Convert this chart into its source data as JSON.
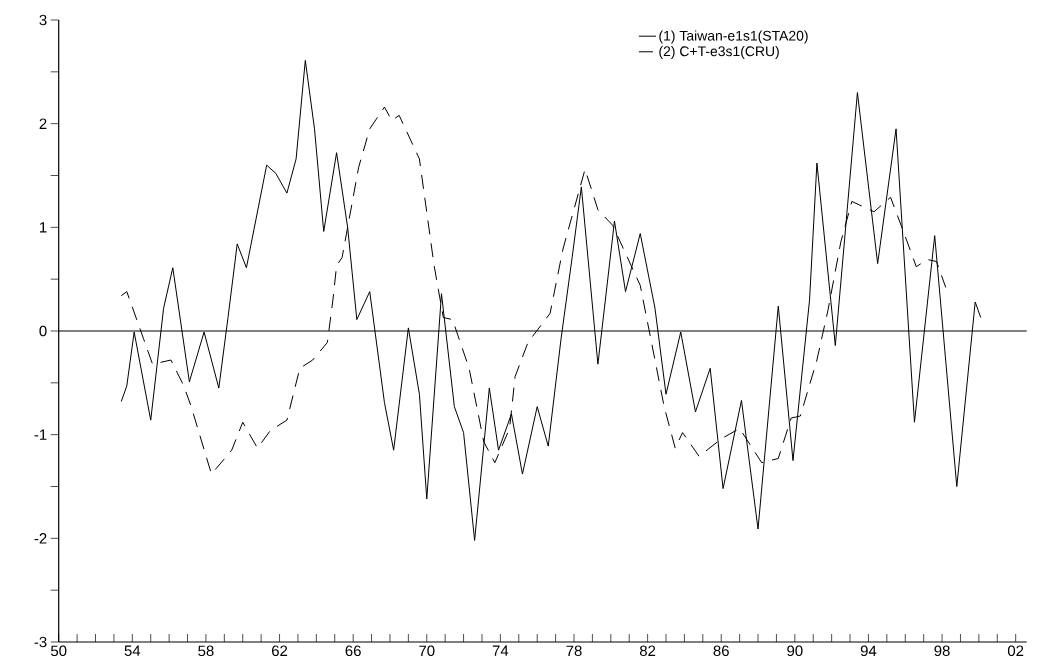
{
  "chart_data": {
    "type": "line",
    "legend": "top right",
    "xlim": [
      1950,
      2002.6
    ],
    "ylim": [
      -3,
      3
    ],
    "xticks": [
      {
        "value": 1950,
        "label": "50"
      },
      {
        "value": 1951,
        "label": null
      },
      {
        "value": 1952,
        "label": null
      },
      {
        "value": 1953,
        "label": null
      },
      {
        "value": 1954,
        "label": "54"
      },
      {
        "value": 1955,
        "label": null
      },
      {
        "value": 1956,
        "label": null
      },
      {
        "value": 1957,
        "label": null
      },
      {
        "value": 1958,
        "label": "58"
      },
      {
        "value": 1959,
        "label": null
      },
      {
        "value": 1960,
        "label": null
      },
      {
        "value": 1961,
        "label": null
      },
      {
        "value": 1962,
        "label": "62"
      },
      {
        "value": 1963,
        "label": null
      },
      {
        "value": 1964,
        "label": null
      },
      {
        "value": 1965,
        "label": null
      },
      {
        "value": 1966,
        "label": "66"
      },
      {
        "value": 1967,
        "label": null
      },
      {
        "value": 1968,
        "label": null
      },
      {
        "value": 1969,
        "label": null
      },
      {
        "value": 1970,
        "label": "70"
      },
      {
        "value": 1971,
        "label": null
      },
      {
        "value": 1972,
        "label": null
      },
      {
        "value": 1973,
        "label": null
      },
      {
        "value": 1974,
        "label": "74"
      },
      {
        "value": 1975,
        "label": null
      },
      {
        "value": 1976,
        "label": null
      },
      {
        "value": 1977,
        "label": null
      },
      {
        "value": 1978,
        "label": "78"
      },
      {
        "value": 1979,
        "label": null
      },
      {
        "value": 1980,
        "label": null
      },
      {
        "value": 1981,
        "label": null
      },
      {
        "value": 1982,
        "label": "82"
      },
      {
        "value": 1983,
        "label": null
      },
      {
        "value": 1984,
        "label": null
      },
      {
        "value": 1985,
        "label": null
      },
      {
        "value": 1986,
        "label": "86"
      },
      {
        "value": 1987,
        "label": null
      },
      {
        "value": 1988,
        "label": null
      },
      {
        "value": 1989,
        "label": null
      },
      {
        "value": 1990,
        "label": "90"
      },
      {
        "value": 1991,
        "label": null
      },
      {
        "value": 1992,
        "label": null
      },
      {
        "value": 1993,
        "label": null
      },
      {
        "value": 1994,
        "label": "94"
      },
      {
        "value": 1995,
        "label": null
      },
      {
        "value": 1996,
        "label": null
      },
      {
        "value": 1997,
        "label": null
      },
      {
        "value": 1998,
        "label": "98"
      },
      {
        "value": 1999,
        "label": null
      },
      {
        "value": 2000,
        "label": null
      },
      {
        "value": 2001,
        "label": null
      },
      {
        "value": 2002,
        "label": "02"
      }
    ],
    "yticks": [
      -3,
      {
        "value": -2.5,
        "label": null
      },
      -2,
      {
        "value": -1.5,
        "label": null
      },
      -1,
      {
        "value": -0.5,
        "label": null
      },
      0,
      {
        "value": 0.5,
        "label": null
      },
      1,
      {
        "value": 1.5,
        "label": null
      },
      2,
      {
        "value": 2.5,
        "label": null
      },
      3
    ],
    "ref_lines": [
      {
        "axis": "y",
        "value": 0,
        "color": "#000000"
      }
    ],
    "series": [
      {
        "name": "(1) Taiwan-e1s1(STA20)",
        "color": "#000000",
        "line_style": "solid",
        "x": [
          1953.4,
          1953.7,
          1954.1,
          1955.0,
          1955.7,
          1956.2,
          1957.1,
          1957.9,
          1958.7,
          1959.2,
          1959.7,
          1960.2,
          1961.3,
          1961.8,
          1962.4,
          1962.9,
          1963.4,
          1963.9,
          1964.4,
          1965.1,
          1965.7,
          1966.2,
          1966.9,
          1967.7,
          1968.2,
          1969.0,
          1969.6,
          1970.0,
          1970.8,
          1971.5,
          1972.0,
          1972.6,
          1973.4,
          1973.9,
          1974.6,
          1975.2,
          1976.0,
          1976.6,
          1977.3,
          1977.9,
          1978.4,
          1979.3,
          1980.2,
          1980.8,
          1981.6,
          1982.4,
          1983.0,
          1983.8,
          1984.6,
          1985.0,
          1985.4,
          1986.1,
          1987.1,
          1988.0,
          1989.1,
          1989.9,
          1990.8,
          1991.2,
          1992.2,
          1993.4,
          1994.5,
          1995.5,
          1996.5,
          1997.6,
          1998.8,
          1999.8,
          2000.1
        ],
        "values": [
          -0.68,
          -0.53,
          -0.01,
          -0.86,
          0.22,
          0.61,
          -0.49,
          -0.01,
          -0.55,
          0.13,
          0.84,
          0.61,
          1.6,
          1.52,
          1.33,
          1.66,
          2.61,
          1.95,
          0.96,
          1.72,
          1.0,
          0.11,
          0.38,
          -0.69,
          -1.15,
          0.03,
          -0.61,
          -1.62,
          0.36,
          -0.73,
          -0.98,
          -2.02,
          -0.55,
          -1.15,
          -0.8,
          -1.38,
          -0.73,
          -1.11,
          -0.07,
          0.71,
          1.39,
          -0.32,
          1.06,
          0.38,
          0.94,
          0.22,
          -0.61,
          -0.01,
          -0.78,
          -0.57,
          -0.36,
          -1.52,
          -0.67,
          -1.91,
          0.24,
          -1.25,
          0.3,
          1.62,
          -0.14,
          2.3,
          0.65,
          1.95,
          -0.88,
          0.92,
          -1.5,
          0.28,
          0.13
        ]
      },
      {
        "name": "(2) C+T-e3s1(CRU)",
        "color": "#000000",
        "line_style": "dashed",
        "x": [
          1953.4,
          1953.7,
          1954.6,
          1955.1,
          1956.1,
          1956.8,
          1957.2,
          1958.3,
          1959.4,
          1960.0,
          1960.8,
          1961.5,
          1962.4,
          1963.1,
          1963.8,
          1964.6,
          1964.9,
          1965.1,
          1965.4,
          1966.3,
          1966.9,
          1967.7,
          1968.1,
          1968.5,
          1969.6,
          1970.4,
          1970.9,
          1971.4,
          1972.3,
          1973.1,
          1973.7,
          1974.5,
          1974.8,
          1975.5,
          1976.7,
          1977.4,
          1978.6,
          1979.3,
          1980.1,
          1981.6,
          1982.9,
          1983.5,
          1983.9,
          1984.8,
          1986.0,
          1987.0,
          1988.2,
          1989.1,
          1989.8,
          1990.3,
          1991.2,
          1991.8,
          1992.5,
          1993.1,
          1994.3,
          1995.2,
          1995.9,
          1996.6,
          1997.2,
          1997.7,
          1998.2
        ],
        "values": [
          0.34,
          0.38,
          -0.07,
          -0.32,
          -0.28,
          -0.53,
          -0.73,
          -1.38,
          -1.15,
          -0.88,
          -1.13,
          -0.96,
          -0.86,
          -0.36,
          -0.28,
          -0.11,
          0.3,
          0.63,
          0.71,
          1.58,
          1.95,
          2.16,
          2.03,
          2.08,
          1.66,
          0.63,
          0.13,
          0.11,
          -0.36,
          -1.07,
          -1.27,
          -0.94,
          -0.44,
          -0.11,
          0.17,
          0.79,
          1.56,
          1.17,
          1.02,
          0.44,
          -0.73,
          -1.13,
          -0.98,
          -1.21,
          -1.04,
          -0.94,
          -1.27,
          -1.23,
          -0.84,
          -0.82,
          -0.28,
          0.2,
          0.86,
          1.25,
          1.15,
          1.29,
          0.96,
          0.62,
          0.69,
          0.67,
          0.42
        ]
      }
    ]
  }
}
